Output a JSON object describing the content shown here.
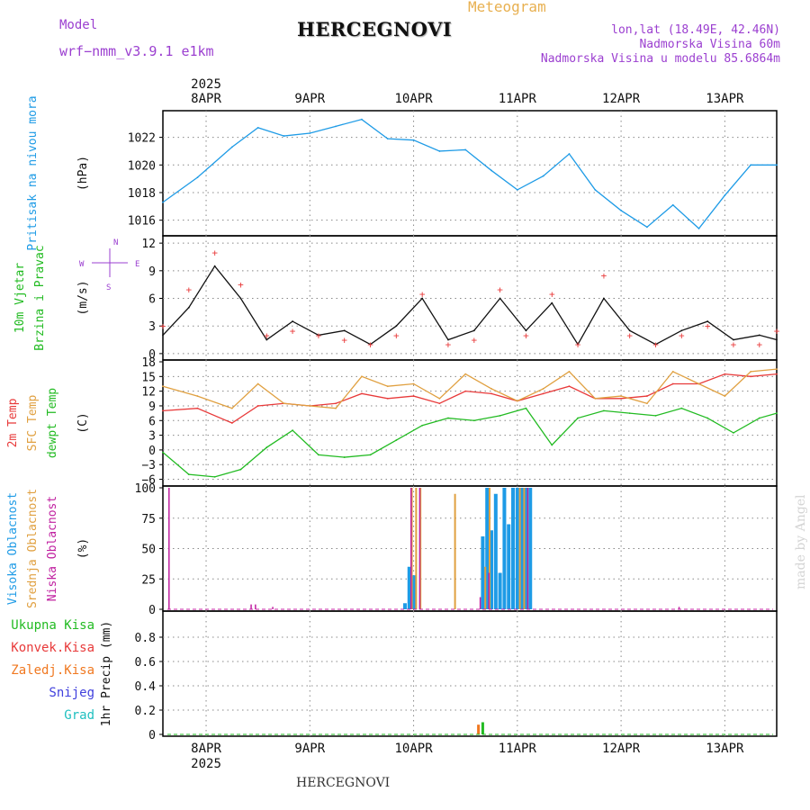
{
  "header": {
    "meteogram_label": "Meteogram",
    "title": "HERCEGNOVI",
    "model_label": "Model",
    "model_name": "wrf−nmm_v3.9.1 e1km",
    "location_coords": "lon,lat (18.49E, 42.46N)",
    "elevation": "Nadmorska Visina 60m",
    "model_elevation": "Nadmorska Visina u modelu 85.6864m"
  },
  "footer": {
    "station_name": "HERCEGNOVI"
  },
  "watermark": "made by Angel",
  "colors": {
    "pressure": "#1e9be6",
    "temp2m": "#e83a3a",
    "sfc": "#e0a040",
    "dewpt": "#22bb22",
    "high_cloud": "#1e9be6",
    "mid_cloud": "#e0a040",
    "low_cloud": "#c020a0",
    "wind_speed": "#111111",
    "wind_gust": "#e83a3a",
    "precip_total": "#22bb22",
    "precip_conv": "#e83a3a",
    "precip_frozen": "#f07820",
    "precip_snow": "#4040dd",
    "precip_hail": "#20c0c0"
  },
  "chart_data": {
    "type": "line",
    "time_axis": {
      "range": [
        "2025-04-07T14:00",
        "2025-04-13T12:00"
      ],
      "year_label": "2025",
      "tick_dates": [
        "2025-04-08T00:00",
        "2025-04-09T00:00",
        "2025-04-10T00:00",
        "2025-04-11T00:00",
        "2025-04-12T00:00",
        "2025-04-13T00:00"
      ],
      "tick_labels": [
        "8APR",
        "9APR",
        "10APR",
        "11APR",
        "12APR",
        "13APR"
      ]
    },
    "panels": [
      {
        "id": "pressure",
        "type": "line",
        "ylabel_lines": [
          "Pritisak na nivou mora"
        ],
        "unit": "(hPa)",
        "ylim": [
          1015,
          1023.8
        ],
        "yticks": [
          1016,
          1018,
          1020,
          1022
        ],
        "grid": true,
        "series": [
          {
            "name": "Pritisak na nivou mora",
            "x": [
              "2025-04-07T14:00",
              "2025-04-07T22:00",
              "2025-04-08T06:00",
              "2025-04-08T12:00",
              "2025-04-08T18:00",
              "2025-04-09T00:00",
              "2025-04-09T06:00",
              "2025-04-09T12:00",
              "2025-04-09T18:00",
              "2025-04-10T00:00",
              "2025-04-10T06:00",
              "2025-04-10T12:00",
              "2025-04-10T18:00",
              "2025-04-11T00:00",
              "2025-04-11T06:00",
              "2025-04-11T12:00",
              "2025-04-11T18:00",
              "2025-04-12T00:00",
              "2025-04-12T06:00",
              "2025-04-12T12:00",
              "2025-04-12T18:00",
              "2025-04-13T00:00",
              "2025-04-13T06:00",
              "2025-04-13T12:00"
            ],
            "y": [
              1017.3,
              1019.1,
              1021.3,
              1022.7,
              1022.1,
              1022.3,
              1022.8,
              1023.3,
              1021.9,
              1021.8,
              1021.0,
              1021.1,
              1019.6,
              1018.2,
              1019.2,
              1020.8,
              1018.2,
              1016.7,
              1015.5,
              1017.1,
              1015.4,
              1017.8,
              1020.0,
              1020.0
            ]
          }
        ]
      },
      {
        "id": "wind",
        "type": "line",
        "ylabel_lines": [
          "10m Vjetar",
          "Brzina i Pravac"
        ],
        "unit": "(m/s)",
        "compass_labels": {
          "west": "W",
          "east": "E",
          "north": "N",
          "south": "S"
        },
        "ylim": [
          -0.5,
          12.6
        ],
        "yticks": [
          0,
          3,
          6,
          9,
          12
        ],
        "grid": true,
        "series": [
          {
            "name": "10m Vjetar",
            "x": [
              "2025-04-07T14:00",
              "2025-04-07T20:00",
              "2025-04-08T02:00",
              "2025-04-08T08:00",
              "2025-04-08T14:00",
              "2025-04-08T20:00",
              "2025-04-09T02:00",
              "2025-04-09T08:00",
              "2025-04-09T14:00",
              "2025-04-09T20:00",
              "2025-04-10T02:00",
              "2025-04-10T08:00",
              "2025-04-10T14:00",
              "2025-04-10T20:00",
              "2025-04-11T02:00",
              "2025-04-11T08:00",
              "2025-04-11T14:00",
              "2025-04-11T20:00",
              "2025-04-12T02:00",
              "2025-04-12T08:00",
              "2025-04-12T14:00",
              "2025-04-12T20:00",
              "2025-04-13T02:00",
              "2025-04-13T08:00",
              "2025-04-13T12:00"
            ],
            "y": [
              2.0,
              5.0,
              9.5,
              6.0,
              1.5,
              3.5,
              2.0,
              2.5,
              1.0,
              3.0,
              6.0,
              1.5,
              2.5,
              6.0,
              2.5,
              5.5,
              1.0,
              6.0,
              2.5,
              1.0,
              2.5,
              3.5,
              1.5,
              2.0,
              1.5
            ]
          },
          {
            "name": "gust",
            "x": [
              "2025-04-07T14:00",
              "2025-04-07T20:00",
              "2025-04-08T02:00",
              "2025-04-08T08:00",
              "2025-04-08T14:00",
              "2025-04-08T20:00",
              "2025-04-09T02:00",
              "2025-04-09T08:00",
              "2025-04-09T14:00",
              "2025-04-09T20:00",
              "2025-04-10T02:00",
              "2025-04-10T08:00",
              "2025-04-10T14:00",
              "2025-04-10T20:00",
              "2025-04-11T02:00",
              "2025-04-11T08:00",
              "2025-04-11T14:00",
              "2025-04-11T20:00",
              "2025-04-12T02:00",
              "2025-04-12T08:00",
              "2025-04-12T14:00",
              "2025-04-12T20:00",
              "2025-04-13T02:00",
              "2025-04-13T08:00",
              "2025-04-13T12:00"
            ],
            "y": [
              3.0,
              7.0,
              11.0,
              7.5,
              2.0,
              2.5,
              2.0,
              1.5,
              1.0,
              2.0,
              6.5,
              1.0,
              1.5,
              7.0,
              2.0,
              6.5,
              1.0,
              8.5,
              2.0,
              1.0,
              2.0,
              3.0,
              1.0,
              1.0,
              2.5
            ]
          }
        ]
      },
      {
        "id": "temperature",
        "type": "line",
        "ylabel_lines": [
          "2m Temp",
          "SFC Temp",
          "dewpt Temp"
        ],
        "unit": "(C)",
        "ylim": [
          -7,
          18
        ],
        "yticks": [
          -6,
          -3,
          0,
          3,
          6,
          9,
          12,
          15,
          18
        ],
        "grid": true,
        "series": [
          {
            "name": "2m Temp",
            "x": [
              "2025-04-07T14:00",
              "2025-04-07T22:00",
              "2025-04-08T06:00",
              "2025-04-08T12:00",
              "2025-04-08T18:00",
              "2025-04-09T00:00",
              "2025-04-09T06:00",
              "2025-04-09T12:00",
              "2025-04-09T18:00",
              "2025-04-10T00:00",
              "2025-04-10T06:00",
              "2025-04-10T12:00",
              "2025-04-10T18:00",
              "2025-04-11T00:00",
              "2025-04-11T06:00",
              "2025-04-11T12:00",
              "2025-04-11T18:00",
              "2025-04-12T00:00",
              "2025-04-12T06:00",
              "2025-04-12T12:00",
              "2025-04-12T18:00",
              "2025-04-13T00:00",
              "2025-04-13T06:00",
              "2025-04-13T12:00"
            ],
            "y": [
              8.0,
              8.5,
              5.5,
              9.0,
              9.5,
              9.0,
              9.5,
              11.5,
              10.5,
              11.0,
              9.5,
              12.0,
              11.5,
              10.0,
              11.5,
              13.0,
              10.5,
              10.5,
              11.0,
              13.5,
              13.5,
              15.5,
              15.0,
              15.5
            ]
          },
          {
            "name": "SFC Temp",
            "x": [
              "2025-04-07T14:00",
              "2025-04-07T22:00",
              "2025-04-08T06:00",
              "2025-04-08T12:00",
              "2025-04-08T18:00",
              "2025-04-09T00:00",
              "2025-04-09T06:00",
              "2025-04-09T12:00",
              "2025-04-09T18:00",
              "2025-04-10T00:00",
              "2025-04-10T06:00",
              "2025-04-10T12:00",
              "2025-04-10T18:00",
              "2025-04-11T00:00",
              "2025-04-11T06:00",
              "2025-04-11T12:00",
              "2025-04-11T18:00",
              "2025-04-12T00:00",
              "2025-04-12T06:00",
              "2025-04-12T12:00",
              "2025-04-12T18:00",
              "2025-04-13T00:00",
              "2025-04-13T06:00",
              "2025-04-13T12:00"
            ],
            "y": [
              13.0,
              11.0,
              8.5,
              13.5,
              9.5,
              9.0,
              8.5,
              15.0,
              13.0,
              13.5,
              10.5,
              15.5,
              12.5,
              10.0,
              12.5,
              16.0,
              10.5,
              11.0,
              9.5,
              16.0,
              13.5,
              11.0,
              16.0,
              16.5
            ]
          },
          {
            "name": "dewpt Temp",
            "x": [
              "2025-04-07T14:00",
              "2025-04-07T20:00",
              "2025-04-08T02:00",
              "2025-04-08T08:00",
              "2025-04-08T14:00",
              "2025-04-08T20:00",
              "2025-04-09T02:00",
              "2025-04-09T08:00",
              "2025-04-09T14:00",
              "2025-04-09T20:00",
              "2025-04-10T02:00",
              "2025-04-10T08:00",
              "2025-04-10T14:00",
              "2025-04-10T20:00",
              "2025-04-11T02:00",
              "2025-04-11T08:00",
              "2025-04-11T14:00",
              "2025-04-11T20:00",
              "2025-04-12T02:00",
              "2025-04-12T08:00",
              "2025-04-12T14:00",
              "2025-04-12T20:00",
              "2025-04-13T02:00",
              "2025-04-13T08:00",
              "2025-04-13T12:00"
            ],
            "y": [
              -0.5,
              -5.0,
              -5.5,
              -4.0,
              0.5,
              4.0,
              -1.0,
              -1.5,
              -1.0,
              2.0,
              5.0,
              6.5,
              6.0,
              7.0,
              8.5,
              1.0,
              6.5,
              8.0,
              7.5,
              7.0,
              8.5,
              6.5,
              3.5,
              6.5,
              7.5
            ]
          }
        ]
      },
      {
        "id": "cloud",
        "type": "bar",
        "ylabel_lines": [
          "Visoka Oblacnost",
          "Srednja Oblacnost",
          "Niska Oblacnost"
        ],
        "unit": "(%)",
        "ylim": [
          0,
          100
        ],
        "yticks": [
          0,
          25,
          50,
          75,
          100
        ],
        "grid": true,
        "series": [
          {
            "name": "Visoka Oblacnost",
            "x": [
              "2025-04-09T22:00",
              "2025-04-09T23:00",
              "2025-04-10T00:00",
              "2025-04-10T16:00",
              "2025-04-10T17:00",
              "2025-04-10T18:00",
              "2025-04-10T19:00",
              "2025-04-10T20:00",
              "2025-04-10T21:00",
              "2025-04-10T22:00",
              "2025-04-10T23:00",
              "2025-04-11T00:00",
              "2025-04-11T01:00",
              "2025-04-11T02:00",
              "2025-04-11T03:00"
            ],
            "values": [
              5,
              35,
              28,
              60,
              100,
              65,
              95,
              30,
              100,
              70,
              100,
              100,
              100,
              100,
              100
            ]
          },
          {
            "name": "Srednja Oblacnost",
            "x": [
              "2025-04-10T00:00",
              "2025-04-10T01:00",
              "2025-04-10T02:00",
              "2025-04-10T10:00",
              "2025-04-10T17:00",
              "2025-04-10T18:00",
              "2025-04-11T01:00",
              "2025-04-11T02:00"
            ],
            "values": [
              100,
              100,
              100,
              95,
              35,
              100,
              100,
              100
            ]
          },
          {
            "name": "Niska Oblacnost",
            "x": [
              "2025-04-07T15:00",
              "2025-04-08T10:00",
              "2025-04-08T11:00",
              "2025-04-08T15:00",
              "2025-04-09T23:00",
              "2025-04-10T01:00",
              "2025-04-10T15:00",
              "2025-04-10T17:00",
              "2025-04-11T02:00",
              "2025-04-12T13:00"
            ],
            "values": [
              100,
              4,
              4,
              2,
              100,
              100,
              10,
              30,
              100,
              2
            ]
          }
        ]
      },
      {
        "id": "precip",
        "type": "bar",
        "ylabel_lines": [
          "1hr Precip (mm)"
        ],
        "unit": "",
        "legend": [
          "Ukupna Kisa",
          "Konvek.Kisa",
          "Zaledj.Kisa",
          "Snijeg",
          "Grad"
        ],
        "ylim": [
          0,
          1.0
        ],
        "yticks": [
          0,
          0.2,
          0.4,
          0.6,
          0.8
        ],
        "grid": true,
        "series": [
          {
            "name": "Ukupna Kisa",
            "x": [
              "2025-04-10T16:00"
            ],
            "values": [
              0.1
            ]
          },
          {
            "name": "Zaledj.Kisa",
            "x": [
              "2025-04-10T15:00"
            ],
            "values": [
              0.08
            ]
          }
        ]
      }
    ]
  }
}
